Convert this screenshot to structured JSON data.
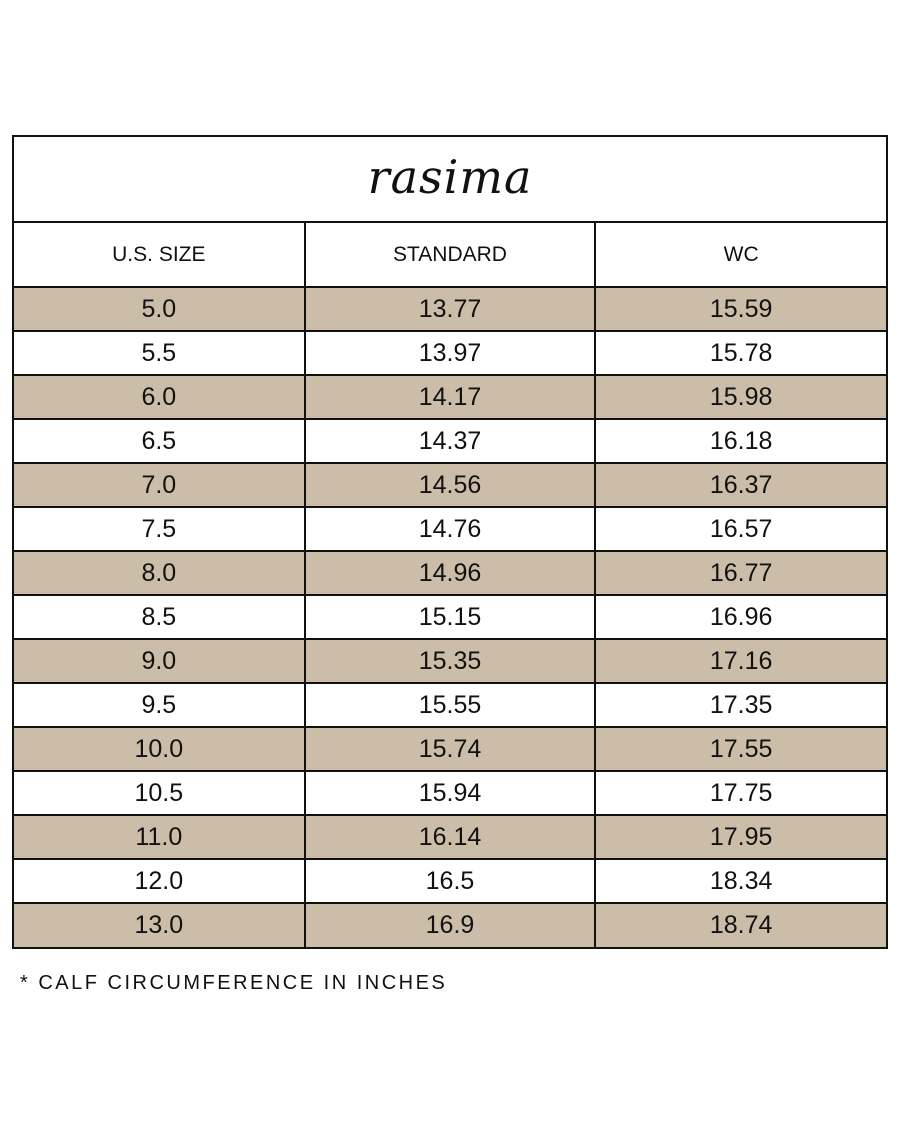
{
  "brand": "rasima",
  "colors": {
    "row_shade": "#cbbda7",
    "border": "#111111",
    "background": "#ffffff"
  },
  "table": {
    "headers": [
      "U.S. SIZE",
      "STANDARD",
      "WC"
    ],
    "rows": [
      [
        "5.0",
        "13.77",
        "15.59"
      ],
      [
        "5.5",
        "13.97",
        "15.78"
      ],
      [
        "6.0",
        "14.17",
        "15.98"
      ],
      [
        "6.5",
        "14.37",
        "16.18"
      ],
      [
        "7.0",
        "14.56",
        "16.37"
      ],
      [
        "7.5",
        "14.76",
        "16.57"
      ],
      [
        "8.0",
        "14.96",
        "16.77"
      ],
      [
        "8.5",
        "15.15",
        "16.96"
      ],
      [
        "9.0",
        "15.35",
        "17.16"
      ],
      [
        "9.5",
        "15.55",
        "17.35"
      ],
      [
        "10.0",
        "15.74",
        "17.55"
      ],
      [
        "10.5",
        "15.94",
        "17.75"
      ],
      [
        "11.0",
        "16.14",
        "17.95"
      ],
      [
        "12.0",
        "16.5",
        "18.34"
      ],
      [
        "13.0",
        "16.9",
        "18.74"
      ]
    ]
  },
  "footnote": "* CALF CIRCUMFERENCE IN INCHES"
}
